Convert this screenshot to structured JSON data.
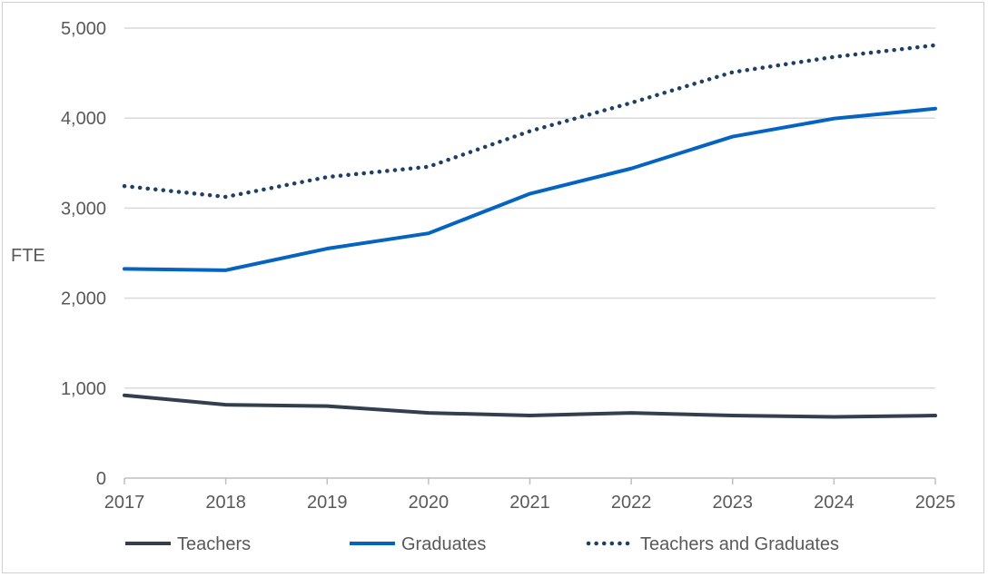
{
  "chart_data": {
    "type": "line",
    "title": "",
    "xlabel": "",
    "ylabel": "FTE",
    "x": [
      2017,
      2018,
      2019,
      2020,
      2021,
      2022,
      2023,
      2024,
      2025
    ],
    "x_tick_labels": [
      "2017",
      "2018",
      "2019",
      "2020",
      "2021",
      "2022",
      "2023",
      "2024",
      "2025"
    ],
    "ylim": [
      0,
      5000
    ],
    "y_ticks": [
      0,
      1000,
      2000,
      3000,
      4000,
      5000
    ],
    "y_tick_labels": [
      "0",
      "1,000",
      "2,000",
      "3,000",
      "4,000",
      "5,000"
    ],
    "grid": "horizontal",
    "legend_position": "bottom",
    "series": [
      {
        "name": "Teachers",
        "color": "#333f4f",
        "style": "solid",
        "values": [
          920,
          815,
          800,
          725,
          695,
          725,
          695,
          680,
          695
        ]
      },
      {
        "name": "Graduates",
        "color": "#0563c1",
        "style": "solid",
        "values": [
          2325,
          2310,
          2550,
          2720,
          3160,
          3440,
          3795,
          3995,
          4105
        ]
      },
      {
        "name": "Teachers and Graduates",
        "color": "#1f3f63",
        "style": "dotted",
        "values": [
          3245,
          3125,
          3345,
          3460,
          3855,
          4170,
          4510,
          4680,
          4810
        ]
      }
    ]
  }
}
